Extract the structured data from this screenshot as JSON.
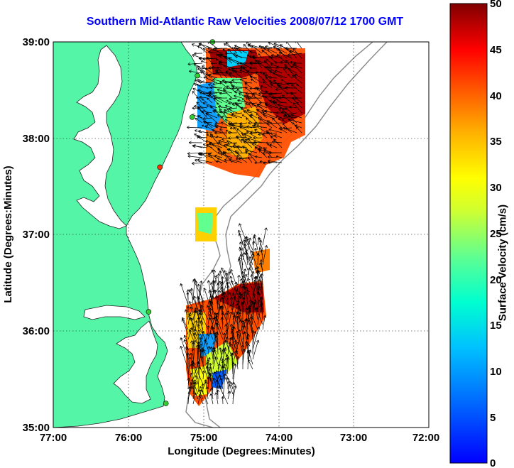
{
  "title": "Southern Mid-Atlantic Raw Velocities 2008/07/12 1700 GMT",
  "axes": {
    "xlabel": "Longitude (Degrees:Minutes)",
    "ylabel": "Latitude (Degrees:Minutes)",
    "xticks": [
      "77:00",
      "76:00",
      "75:00",
      "74:00",
      "73:00",
      "72:00"
    ],
    "yticks": [
      "39:00",
      "38:00",
      "37:00",
      "36:00",
      "35:00"
    ],
    "xlim": [
      -77,
      -72
    ],
    "ylim": [
      35,
      39
    ],
    "grid": true
  },
  "colorbar": {
    "label": "Surface Velocity (cm/s)",
    "ticks": [
      "50",
      "45",
      "40",
      "35",
      "30",
      "25",
      "20",
      "15",
      "10",
      "5",
      "0"
    ],
    "range": [
      0,
      50
    ],
    "colormap": "jet"
  },
  "colors": {
    "land": "#55f5a8",
    "title": "#0000ff",
    "station_green": "#33cc33",
    "station_red": "#ff3300",
    "bathymetry": "#888888"
  },
  "stations": [
    {
      "lon": -74.88,
      "lat": 39.0,
      "status": "green"
    },
    {
      "lon": -75.08,
      "lat": 38.65,
      "status": "green"
    },
    {
      "lon": -75.15,
      "lat": 38.22,
      "status": "green"
    },
    {
      "lon": -75.58,
      "lat": 37.7,
      "status": "red"
    },
    {
      "lon": -75.73,
      "lat": 36.2,
      "status": "green"
    },
    {
      "lon": -75.5,
      "lat": 35.25,
      "status": "green"
    }
  ]
}
